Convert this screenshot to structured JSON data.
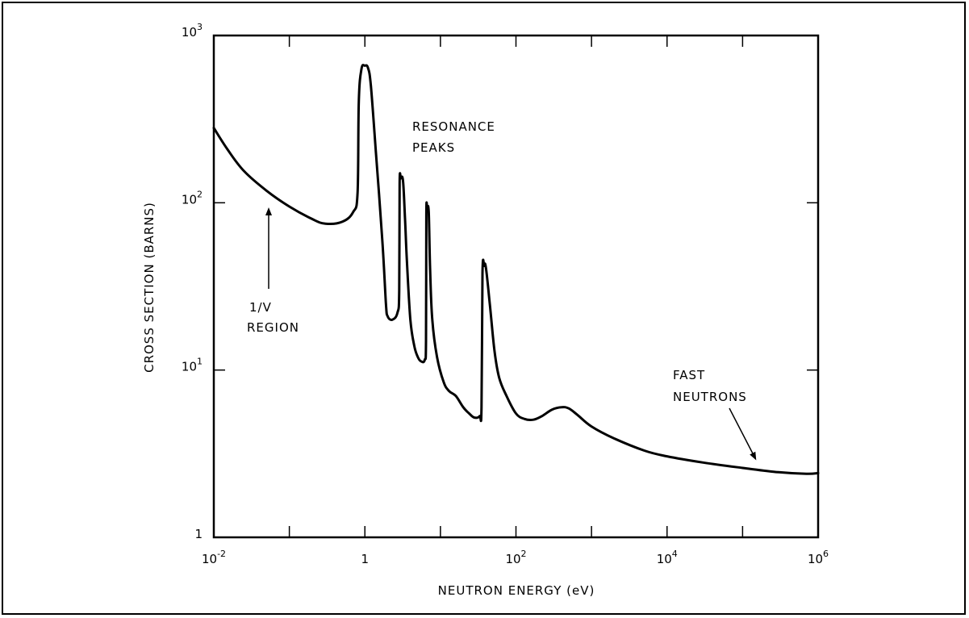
{
  "chart_data": {
    "type": "line",
    "xscale": "log",
    "yscale": "log",
    "xlim": [
      0.01,
      1000000
    ],
    "ylim": [
      1,
      1000
    ],
    "xlabel": "NEUTRON ENERGY (eV)",
    "ylabel": "CROSS SECTION (BARNS)",
    "grid": false,
    "x_ticks": [
      {
        "base": "10",
        "exp": "-2",
        "value": 0.01
      },
      {
        "base": "1",
        "exp": "",
        "value": 1
      },
      {
        "base": "10",
        "exp": "2",
        "value": 100
      },
      {
        "base": "10",
        "exp": "4",
        "value": 10000
      },
      {
        "base": "10",
        "exp": "6",
        "value": 1000000
      }
    ],
    "y_ticks": [
      {
        "base": "1",
        "exp": "",
        "value": 1
      },
      {
        "base": "10",
        "exp": "1",
        "value": 10
      },
      {
        "base": "10",
        "exp": "2",
        "value": 100
      },
      {
        "base": "10",
        "exp": "3",
        "value": 1000
      }
    ],
    "series": [
      {
        "values": [
          [
            0.01,
            280
          ],
          [
            0.015,
            210
          ],
          [
            0.025,
            155
          ],
          [
            0.05,
            118
          ],
          [
            0.1,
            95
          ],
          [
            0.2,
            80
          ],
          [
            0.3,
            75
          ],
          [
            0.5,
            77
          ],
          [
            0.7,
            88
          ],
          [
            0.8,
            115
          ],
          [
            0.83,
            400
          ],
          [
            0.9,
            630
          ],
          [
            1.0,
            660
          ],
          [
            1.1,
            640
          ],
          [
            1.2,
            500
          ],
          [
            1.4,
            200
          ],
          [
            1.7,
            60
          ],
          [
            1.9,
            25
          ],
          [
            2.0,
            21
          ],
          [
            2.3,
            20
          ],
          [
            2.7,
            22
          ],
          [
            2.85,
            30
          ],
          [
            2.88,
            130
          ],
          [
            3.0,
            140
          ],
          [
            3.2,
            135
          ],
          [
            3.4,
            80
          ],
          [
            3.6,
            45
          ],
          [
            4.0,
            20
          ],
          [
            4.5,
            14
          ],
          [
            5.0,
            12
          ],
          [
            5.5,
            11.3
          ],
          [
            6.2,
            11.5
          ],
          [
            6.45,
            15
          ],
          [
            6.5,
            85
          ],
          [
            6.7,
            92
          ],
          [
            7.0,
            88
          ],
          [
            7.3,
            40
          ],
          [
            7.8,
            20
          ],
          [
            9.0,
            12
          ],
          [
            11,
            8.5
          ],
          [
            13,
            7.5
          ],
          [
            16,
            7.0
          ],
          [
            20,
            6.0
          ],
          [
            24,
            5.5
          ],
          [
            28,
            5.2
          ],
          [
            33,
            5.3
          ],
          [
            35,
            6
          ],
          [
            36,
            38
          ],
          [
            38,
            42
          ],
          [
            40,
            41
          ],
          [
            45,
            25
          ],
          [
            52,
            13
          ],
          [
            60,
            9
          ],
          [
            75,
            7
          ],
          [
            100,
            5.5
          ],
          [
            130,
            5.1
          ],
          [
            170,
            5.05
          ],
          [
            220,
            5.3
          ],
          [
            300,
            5.8
          ],
          [
            400,
            6.0
          ],
          [
            500,
            5.9
          ],
          [
            650,
            5.4
          ],
          [
            1000,
            4.6
          ],
          [
            2000,
            3.9
          ],
          [
            5000,
            3.3
          ],
          [
            10000,
            3.05
          ],
          [
            30000,
            2.8
          ],
          [
            100000,
            2.6
          ],
          [
            300000,
            2.45
          ],
          [
            700000,
            2.4
          ],
          [
            1000000,
            2.42
          ]
        ]
      }
    ],
    "annotations": [
      {
        "id": "resonance",
        "lines": [
          "RESONANCE",
          "PEAKS"
        ]
      },
      {
        "id": "one_over_v",
        "lines": [
          "1/V",
          "REGION"
        ]
      },
      {
        "id": "fast",
        "lines": [
          "FAST",
          "NEUTRONS"
        ]
      }
    ]
  }
}
